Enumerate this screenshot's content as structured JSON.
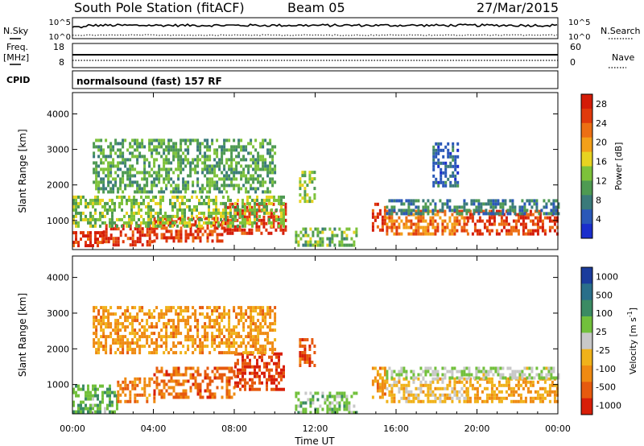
{
  "header": {
    "station": "South Pole Station (fitACF)",
    "beam": "Beam 05",
    "date": "27/Mar/2015",
    "cpid_label": "CPID",
    "cpid_value": "normalsound (fast) 157 RF"
  },
  "top_panels": {
    "nsky_label": "N.Sky",
    "nsearch_label": "N.Search",
    "freq_label_1": "Freq.",
    "freq_label_2": "[MHz]",
    "nave_label": "Nave",
    "noise_left_ticks": [
      "10^5",
      "10^0"
    ],
    "noise_right_ticks": [
      "10^5",
      "10^0"
    ],
    "freq_left_ticks": [
      "18",
      "8"
    ],
    "freq_right_ticks": [
      "60",
      "0"
    ]
  },
  "colors": {
    "power_scale": [
      "#1a2ecc",
      "#2a58b8",
      "#3a7a7a",
      "#4e9a52",
      "#7dc23a",
      "#e7d321",
      "#f3a019",
      "#ec6f14",
      "#e03a0c",
      "#d41c08"
    ],
    "velocity_scale": [
      "#1b3c9c",
      "#2a6f8a",
      "#3b8b63",
      "#72c03c",
      "#c8c8c8",
      "#f0b21a",
      "#ef8a12",
      "#e65a0e",
      "#d81e08"
    ]
  },
  "chart_data": [
    {
      "type": "heatmap",
      "panel": "power",
      "xlabel": "",
      "ylabel": "Slant Range [km]",
      "y_ticks": [
        "1000",
        "2000",
        "3000",
        "4000"
      ],
      "ylim": [
        180,
        4600
      ],
      "colorbar_label": "Power [dB]",
      "colorbar_ticks": [
        "4",
        "8",
        "12",
        "16",
        "20",
        "24",
        "28"
      ],
      "colorbar_range": [
        0,
        30
      ],
      "x_ticks": [
        "00:00",
        "04:00",
        "08:00",
        "12:00",
        "16:00",
        "20:00",
        "00:00"
      ],
      "x_range_hours": [
        0,
        24
      ],
      "bands": [
        {
          "t0": 0.0,
          "t1": 1.5,
          "r0": 300,
          "r1": 700,
          "v": 27
        },
        {
          "t0": 1.5,
          "t1": 4.0,
          "r0": 350,
          "r1": 900,
          "v": 26
        },
        {
          "t0": 4.0,
          "t1": 7.5,
          "r0": 400,
          "r1": 1100,
          "v": 26
        },
        {
          "t0": 7.5,
          "t1": 10.5,
          "r0": 600,
          "r1": 1500,
          "v": 27
        },
        {
          "t0": 0.0,
          "t1": 10.5,
          "r0": 800,
          "r1": 1700,
          "v": 13
        },
        {
          "t0": 1.0,
          "t1": 10.0,
          "r0": 1800,
          "r1": 3300,
          "v": 11
        },
        {
          "t0": 11.2,
          "t1": 12.0,
          "r0": 1500,
          "r1": 2400,
          "v": 14
        },
        {
          "t0": 11.0,
          "t1": 14.0,
          "r0": 300,
          "r1": 800,
          "v": 12
        },
        {
          "t0": 14.8,
          "t1": 15.5,
          "r0": 700,
          "r1": 1500,
          "v": 26
        },
        {
          "t0": 15.5,
          "t1": 19.5,
          "r0": 600,
          "r1": 1300,
          "v": 22
        },
        {
          "t0": 19.5,
          "t1": 24.0,
          "r0": 600,
          "r1": 1300,
          "v": 26
        },
        {
          "t0": 15.5,
          "t1": 24.0,
          "r0": 1200,
          "r1": 1600,
          "v": 8
        },
        {
          "t0": 17.8,
          "t1": 19.0,
          "r0": 2000,
          "r1": 3200,
          "v": 6
        }
      ]
    },
    {
      "type": "heatmap",
      "panel": "velocity",
      "xlabel": "Time UT",
      "ylabel": "Slant Range [km]",
      "y_ticks": [
        "1000",
        "2000",
        "3000",
        "4000"
      ],
      "ylim": [
        180,
        4600
      ],
      "colorbar_label": "Velocity [m s",
      "colorbar_label_sup": "-1",
      "colorbar_label_tail": "]",
      "colorbar_ticks": [
        "1000",
        "500",
        "100",
        "25",
        "-25",
        "-100",
        "-500",
        "-1000"
      ],
      "colorbar_range": [
        -1000,
        1000
      ],
      "x_ticks": [
        "00:00",
        "04:00",
        "08:00",
        "12:00",
        "16:00",
        "20:00",
        "00:00"
      ],
      "x_range_hours": [
        0,
        24
      ],
      "bands": [
        {
          "t0": 0.0,
          "t1": 2.2,
          "r0": 200,
          "r1": 1000,
          "v": 300
        },
        {
          "t0": 2.2,
          "t1": 4.0,
          "r0": 500,
          "r1": 1200,
          "v": -500
        },
        {
          "t0": 4.0,
          "t1": 8.0,
          "r0": 600,
          "r1": 1500,
          "v": -600
        },
        {
          "t0": 8.0,
          "t1": 10.5,
          "r0": 900,
          "r1": 1900,
          "v": -800
        },
        {
          "t0": 1.0,
          "t1": 10.0,
          "r0": 1900,
          "r1": 3200,
          "v": -400
        },
        {
          "t0": 11.2,
          "t1": 12.0,
          "r0": 1500,
          "r1": 2300,
          "v": -700
        },
        {
          "t0": 11.0,
          "t1": 14.0,
          "r0": 200,
          "r1": 800,
          "v": 200
        },
        {
          "t0": 14.8,
          "t1": 15.5,
          "r0": 600,
          "r1": 1500,
          "v": -400
        },
        {
          "t0": 15.5,
          "t1": 19.5,
          "r0": 500,
          "r1": 1200,
          "v": -200
        },
        {
          "t0": 19.5,
          "t1": 24.0,
          "r0": 500,
          "r1": 1200,
          "v": -300
        },
        {
          "t0": 15.5,
          "t1": 24.0,
          "r0": 1200,
          "r1": 1500,
          "v": 80
        }
      ]
    }
  ]
}
